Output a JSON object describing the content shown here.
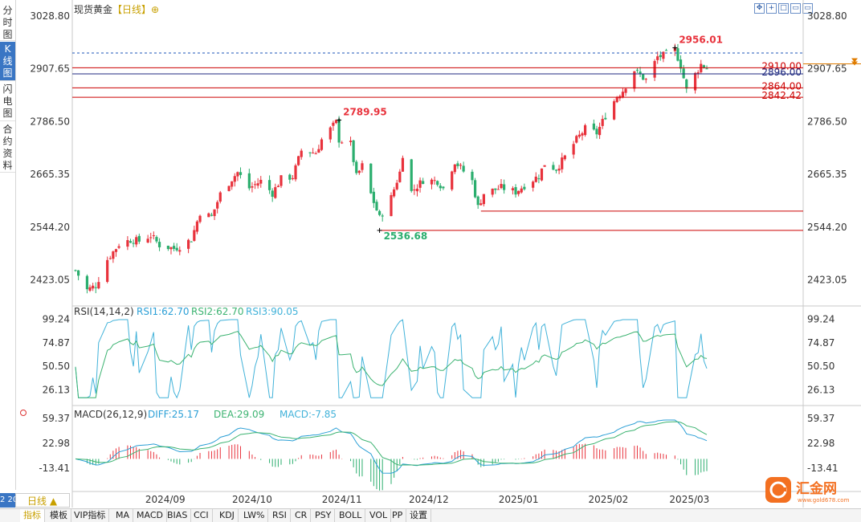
{
  "title": {
    "name": "现货黄金",
    "period": "【日线】",
    "add": "⊕"
  },
  "sidebar": [
    {
      "label": "分时图",
      "active": false
    },
    {
      "label": "K线图",
      "active": true
    },
    {
      "label": "闪电图",
      "active": false
    },
    {
      "label": "合约资料",
      "active": false
    }
  ],
  "toolbar_icons": [
    "move-icon",
    "crosshair-icon",
    "layout-icon",
    "zoom-in-icon",
    "zoom-out-icon"
  ],
  "period_button": {
    "label": "日线",
    "arrow": "▲",
    "cut_text": "2 20"
  },
  "logo": {
    "name": "汇金网",
    "url": "www.gold678.com",
    "color": "#f37021"
  },
  "bottom_tabs": [
    {
      "label": "指标",
      "active": true
    },
    {
      "label": "模板",
      "active": false
    },
    {
      "label": "VIP指标",
      "active": false
    },
    {
      "label": "MA",
      "active": false
    },
    {
      "label": "MACD",
      "active": false
    },
    {
      "label": "BIAS",
      "active": false
    },
    {
      "label": "CCI",
      "active": false
    },
    {
      "label": "KDJ",
      "active": false
    },
    {
      "label": "LW%",
      "active": false
    },
    {
      "label": "RSI",
      "active": false
    },
    {
      "label": "CR",
      "active": false
    },
    {
      "label": "PSY",
      "active": false
    },
    {
      "label": "BOLL",
      "active": false
    },
    {
      "label": "VOL",
      "active": false
    },
    {
      "label": "PP",
      "active": false
    },
    {
      "label": "设置",
      "active": false
    }
  ],
  "chart_data": [
    {
      "type": "candlestick",
      "title": "现货黄金【日线】",
      "yticks": [
        "3028.80",
        "2907.65",
        "2786.50",
        "2665.35",
        "2544.20",
        "2423.05"
      ],
      "ylim": [
        2365,
        3028.8
      ],
      "xticks": [
        "2024/09",
        "2024/10",
        "2024/11",
        "2024/12",
        "2025/01",
        "2025/02",
        "2025/03"
      ],
      "x_date_range": [
        "2024-08-01",
        "2025-03-07"
      ],
      "grid": false,
      "colors": {
        "up": "#e8323c",
        "down": "#2bae6e"
      },
      "current_price": {
        "value": "2919.00",
        "color": "#e07c00"
      },
      "annotations": [
        {
          "label": "2956.01",
          "value": 2956.01,
          "date": "2025-02-24",
          "kind": "high"
        },
        {
          "label": "2789.95",
          "value": 2789.95,
          "date": "2024-10-31",
          "kind": "high"
        },
        {
          "label": "2536.68",
          "value": 2536.68,
          "date": "2024-11-14",
          "kind": "low"
        }
      ],
      "horizontal_lines": [
        {
          "label": "2910.00",
          "value": 2910.0,
          "color": "#cc0000"
        },
        {
          "label": "2896.00",
          "value": 2896.0,
          "color": "#1f2a80"
        },
        {
          "label": "2864.00",
          "value": 2864.0,
          "color": "#cc0000"
        },
        {
          "label": "2842.42",
          "value": 2842.42,
          "color": "#cc0000"
        },
        {
          "label": "",
          "value": 2944.0,
          "color": "#1e56b8",
          "style": "dashed"
        },
        {
          "label": "",
          "value": 2581.0,
          "color": "#cc0000",
          "from_date": "2024-12-19"
        },
        {
          "label": "",
          "value": 2536.68,
          "color": "#cc0000",
          "from_date": "2024-11-14"
        }
      ],
      "close_path": [
        [
          "2024-08-01",
          2445
        ],
        [
          "2024-08-05",
          2400
        ],
        [
          "2024-08-08",
          2410
        ],
        [
          "2024-08-12",
          2470
        ],
        [
          "2024-08-16",
          2505
        ],
        [
          "2024-08-20",
          2515
        ],
        [
          "2024-08-23",
          2512
        ],
        [
          "2024-08-27",
          2525
        ],
        [
          "2024-08-30",
          2503
        ],
        [
          "2024-09-04",
          2495
        ],
        [
          "2024-09-06",
          2500
        ],
        [
          "2024-09-10",
          2516
        ],
        [
          "2024-09-13",
          2578
        ],
        [
          "2024-09-17",
          2568
        ],
        [
          "2024-09-20",
          2620
        ],
        [
          "2024-09-24",
          2655
        ],
        [
          "2024-09-26",
          2670
        ],
        [
          "2024-09-30",
          2634
        ],
        [
          "2024-10-04",
          2650
        ],
        [
          "2024-10-08",
          2622
        ],
        [
          "2024-10-11",
          2655
        ],
        [
          "2024-10-15",
          2660
        ],
        [
          "2024-10-18",
          2720
        ],
        [
          "2024-10-23",
          2715
        ],
        [
          "2024-10-25",
          2745
        ],
        [
          "2024-10-30",
          2785
        ],
        [
          "2024-10-31",
          2745
        ],
        [
          "2024-11-04",
          2735
        ],
        [
          "2024-11-06",
          2660
        ],
        [
          "2024-11-08",
          2685
        ],
        [
          "2024-11-11",
          2620
        ],
        [
          "2024-11-14",
          2565
        ],
        [
          "2024-11-18",
          2612
        ],
        [
          "2024-11-21",
          2670
        ],
        [
          "2024-11-22",
          2712
        ],
        [
          "2024-11-25",
          2625
        ],
        [
          "2024-11-29",
          2652
        ],
        [
          "2024-12-04",
          2650
        ],
        [
          "2024-12-06",
          2633
        ],
        [
          "2024-12-10",
          2695
        ],
        [
          "2024-12-12",
          2680
        ],
        [
          "2024-12-16",
          2650
        ],
        [
          "2024-12-18",
          2590
        ],
        [
          "2024-12-20",
          2622
        ],
        [
          "2024-12-26",
          2635
        ],
        [
          "2024-12-31",
          2625
        ],
        [
          "2025-01-03",
          2640
        ],
        [
          "2025-01-08",
          2662
        ],
        [
          "2025-01-10",
          2690
        ],
        [
          "2025-01-14",
          2678
        ],
        [
          "2025-01-17",
          2705
        ],
        [
          "2025-01-21",
          2745
        ],
        [
          "2025-01-24",
          2770
        ],
        [
          "2025-01-28",
          2760
        ],
        [
          "2025-01-31",
          2800
        ],
        [
          "2025-02-04",
          2845
        ],
        [
          "2025-02-06",
          2858
        ],
        [
          "2025-02-10",
          2905
        ],
        [
          "2025-02-11",
          2898
        ],
        [
          "2025-02-14",
          2882
        ],
        [
          "2025-02-18",
          2935
        ],
        [
          "2025-02-20",
          2938
        ],
        [
          "2025-02-24",
          2952
        ],
        [
          "2025-02-26",
          2915
        ],
        [
          "2025-02-28",
          2858
        ],
        [
          "2025-03-03",
          2895
        ],
        [
          "2025-03-05",
          2918
        ],
        [
          "2025-03-07",
          2910
        ]
      ]
    },
    {
      "type": "line",
      "title": "RSI(14,14,2)",
      "legend": [
        {
          "label": "RSI1:62.70",
          "color": "#2b9fd6"
        },
        {
          "label": "RSI2:62.70",
          "color": "#3cb371"
        },
        {
          "label": "RSI3:90.05",
          "color": "#41b2d9"
        }
      ],
      "yticks": [
        "99.24",
        "74.87",
        "50.50",
        "26.13"
      ],
      "ylim": [
        14,
        104
      ]
    },
    {
      "type": "bar+line",
      "title": "MACD(26,12,9)",
      "legend": [
        {
          "label": "DIFF:25.17",
          "color": "#2b9fd6"
        },
        {
          "label": "DEA:29.09",
          "color": "#3cb371"
        },
        {
          "label": "MACD:-7.85",
          "color": "#41b2d9"
        }
      ],
      "yticks": [
        "59.37",
        "22.98",
        "-13.41"
      ],
      "ylim": [
        -48,
        75
      ]
    }
  ]
}
